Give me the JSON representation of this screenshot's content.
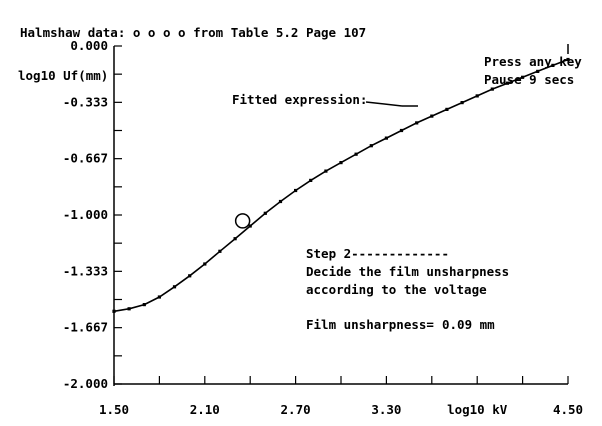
{
  "header": {
    "source_text": "Halmshaw data: o o o o  from Table 5.2 Page 107"
  },
  "prompt": {
    "line1": "Press any key",
    "line2": "Pause   9 secs"
  },
  "annotation": {
    "fitted_label": "Fitted expression:"
  },
  "step": {
    "title": "Step 2-------------",
    "line1": "Decide the film unsharpness",
    "line2": "according to the voltage",
    "result_label": "Film unsharpness=",
    "result_value": "0.09 mm"
  },
  "chart_data": {
    "type": "line",
    "title": "",
    "xlabel": "log10 kV",
    "ylabel": "log10 Uf(mm)",
    "xlim": [
      1.5,
      4.5
    ],
    "ylim": [
      -2.0,
      0.0
    ],
    "x_tick_labels": [
      "1.50",
      "2.10",
      "2.70",
      "3.30",
      "log10 kV",
      "4.50"
    ],
    "y_tick_labels": [
      "0.000",
      "-0.333",
      "-0.667",
      "-1.000",
      "-1.333",
      "-1.667",
      "-2.000"
    ],
    "series": [
      {
        "name": "Fitted expression",
        "x": [
          1.5,
          1.6,
          1.7,
          1.8,
          1.9,
          2.0,
          2.1,
          2.2,
          2.3,
          2.4,
          2.5,
          2.6,
          2.7,
          2.8,
          2.9,
          3.0,
          3.1,
          3.2,
          3.3,
          3.4,
          3.5,
          3.6,
          3.7,
          3.8,
          3.9,
          4.0,
          4.1,
          4.2,
          4.3,
          4.4,
          4.5
        ],
        "y": [
          -1.57,
          -1.555,
          -1.53,
          -1.485,
          -1.425,
          -1.36,
          -1.29,
          -1.215,
          -1.14,
          -1.065,
          -0.99,
          -0.92,
          -0.855,
          -0.795,
          -0.74,
          -0.69,
          -0.64,
          -0.59,
          -0.545,
          -0.5,
          -0.455,
          -0.415,
          -0.375,
          -0.335,
          -0.295,
          -0.255,
          -0.22,
          -0.185,
          -0.15,
          -0.115,
          -0.08
        ]
      }
    ],
    "marker": {
      "x": 2.35,
      "y": -1.035
    },
    "grid": false,
    "colors": {
      "foreground": "#000000",
      "background": "#ffffff"
    }
  }
}
